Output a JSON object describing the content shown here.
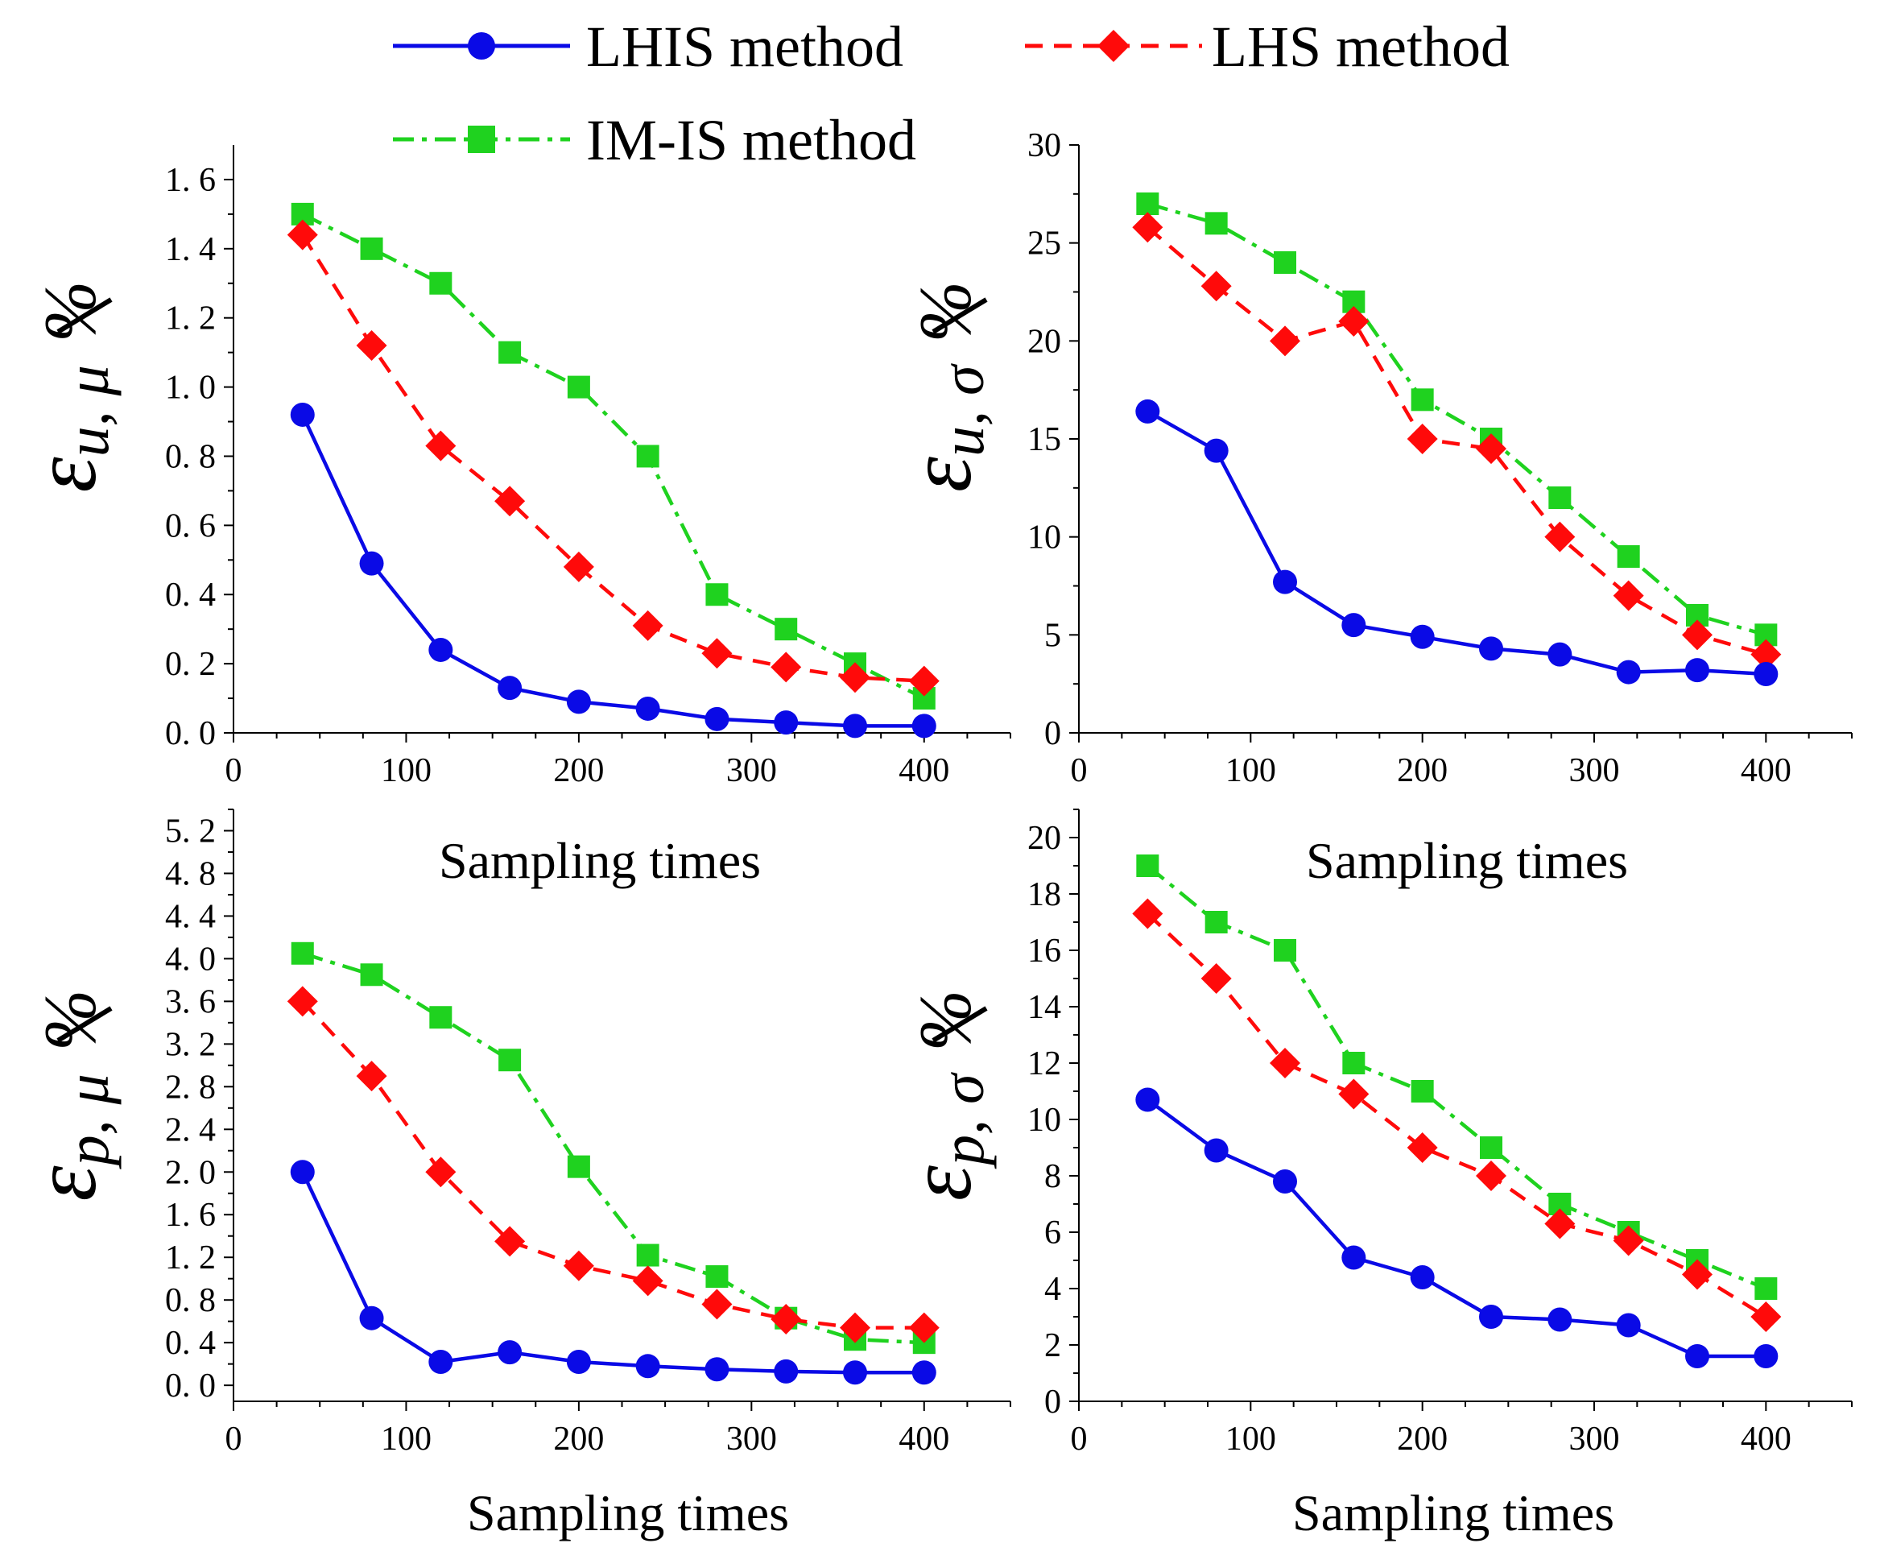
{
  "legend": [
    {
      "label": "LHIS method",
      "color": "#0a0ae6",
      "marker": "circle",
      "dash": "solid"
    },
    {
      "label": "LHS method",
      "color": "#ff0a0a",
      "marker": "diamond",
      "dash": "dashed"
    },
    {
      "label": "IM-IS method",
      "color": "#1fd21f",
      "marker": "square",
      "dash": "dashdot"
    }
  ],
  "chart_data": [
    {
      "type": "line",
      "id": "u-mu",
      "title": "",
      "xlabel": "Sampling times",
      "ylabel": {
        "symbol": "ε",
        "subscript": "u, μ",
        "unit": "%"
      },
      "xlim": [
        0,
        450
      ],
      "ylim": [
        0,
        1.7
      ],
      "xticks": [
        0,
        100,
        200,
        300,
        400
      ],
      "yticks": [
        0.0,
        0.2,
        0.4,
        0.6,
        0.8,
        1.0,
        1.2,
        1.4,
        1.6
      ],
      "ytick_labels": [
        "0. 0",
        "0. 2",
        "0. 4",
        "0. 6",
        "0. 8",
        "1. 0",
        "1. 2",
        "1. 4",
        "1. 6"
      ],
      "x": [
        40,
        80,
        120,
        160,
        200,
        240,
        280,
        320,
        360,
        400
      ],
      "series": [
        {
          "name": "LHIS method",
          "values": [
            0.92,
            0.49,
            0.24,
            0.13,
            0.09,
            0.07,
            0.04,
            0.03,
            0.02,
            0.02
          ]
        },
        {
          "name": "LHS method",
          "values": [
            1.44,
            1.12,
            0.83,
            0.67,
            0.48,
            0.31,
            0.23,
            0.19,
            0.16,
            0.15
          ]
        },
        {
          "name": "IM-IS method",
          "values": [
            1.5,
            1.4,
            1.3,
            1.1,
            1.0,
            0.8,
            0.4,
            0.3,
            0.2,
            0.1
          ]
        }
      ]
    },
    {
      "type": "line",
      "id": "u-sigma",
      "title": "",
      "xlabel": "Sampling times",
      "ylabel": {
        "symbol": "ε",
        "subscript": "u, σ",
        "unit": "%"
      },
      "xlim": [
        0,
        450
      ],
      "ylim": [
        0,
        30
      ],
      "xticks": [
        0,
        100,
        200,
        300,
        400
      ],
      "yticks": [
        0,
        5,
        10,
        15,
        20,
        25,
        30
      ],
      "ytick_labels": [
        "0",
        "5",
        "10",
        "15",
        "20",
        "25",
        "30"
      ],
      "x": [
        40,
        80,
        120,
        160,
        200,
        240,
        280,
        320,
        360,
        400
      ],
      "series": [
        {
          "name": "LHIS method",
          "values": [
            16.4,
            14.4,
            7.7,
            5.5,
            4.9,
            4.3,
            4.0,
            3.1,
            3.2,
            3.0
          ]
        },
        {
          "name": "LHS method",
          "values": [
            25.8,
            22.8,
            20.0,
            21.0,
            15.0,
            14.5,
            10.0,
            7.0,
            5.0,
            4.0
          ]
        },
        {
          "name": "IM-IS method",
          "values": [
            27.0,
            26.0,
            24.0,
            22.0,
            17.0,
            15.0,
            12.0,
            9.0,
            6.0,
            5.0
          ]
        }
      ]
    },
    {
      "type": "line",
      "id": "p-mu",
      "title": "",
      "xlabel": "Sampling times",
      "ylabel": {
        "symbol": "ε",
        "subscript": "p, μ",
        "unit": "%"
      },
      "xlim": [
        0,
        450
      ],
      "ylim": [
        -0.15,
        5.4
      ],
      "xticks": [
        0,
        100,
        200,
        300,
        400
      ],
      "yticks": [
        0.0,
        0.4,
        0.8,
        1.2,
        1.6,
        2.0,
        2.4,
        2.8,
        3.2,
        3.6,
        4.0,
        4.4,
        4.8,
        5.2
      ],
      "ytick_labels": [
        "0. 0",
        "0. 4",
        "0. 8",
        "1. 2",
        "1. 6",
        "2. 0",
        "2. 4",
        "2. 8",
        "3. 2",
        "3. 6",
        "4. 0",
        "4. 4",
        "4. 8",
        "5. 2"
      ],
      "x": [
        40,
        80,
        120,
        160,
        200,
        240,
        280,
        320,
        360,
        400
      ],
      "series": [
        {
          "name": "LHIS method",
          "values": [
            2.0,
            0.63,
            0.22,
            0.31,
            0.22,
            0.18,
            0.15,
            0.13,
            0.12,
            0.12
          ]
        },
        {
          "name": "LHS method",
          "values": [
            3.6,
            2.9,
            2.0,
            1.35,
            1.12,
            0.98,
            0.76,
            0.62,
            0.54,
            0.54
          ]
        },
        {
          "name": "IM-IS method",
          "values": [
            4.05,
            3.85,
            3.45,
            3.05,
            2.05,
            1.22,
            1.02,
            0.63,
            0.43,
            0.4
          ]
        }
      ]
    },
    {
      "type": "line",
      "id": "p-sigma",
      "title": "",
      "xlabel": "Sampling times",
      "ylabel": {
        "symbol": "ε",
        "subscript": "p, σ",
        "unit": "%"
      },
      "xlim": [
        0,
        450
      ],
      "ylim": [
        0,
        21
      ],
      "xticks": [
        0,
        100,
        200,
        300,
        400
      ],
      "yticks": [
        0,
        2,
        4,
        6,
        8,
        10,
        12,
        14,
        16,
        18,
        20
      ],
      "ytick_labels": [
        "0",
        "2",
        "4",
        "6",
        "8",
        "10",
        "12",
        "14",
        "16",
        "18",
        "20"
      ],
      "x": [
        40,
        80,
        120,
        160,
        200,
        240,
        280,
        320,
        360,
        400
      ],
      "series": [
        {
          "name": "LHIS method",
          "values": [
            10.7,
            8.9,
            7.8,
            5.1,
            4.4,
            3.0,
            2.9,
            2.7,
            1.6,
            1.6
          ]
        },
        {
          "name": "LHS method",
          "values": [
            17.3,
            15.0,
            12.0,
            10.9,
            9.0,
            8.0,
            6.3,
            5.7,
            4.5,
            3.0
          ]
        },
        {
          "name": "IM-IS method",
          "values": [
            19.0,
            17.0,
            16.0,
            12.0,
            11.0,
            9.0,
            7.0,
            6.0,
            5.0,
            4.0
          ]
        }
      ]
    }
  ]
}
